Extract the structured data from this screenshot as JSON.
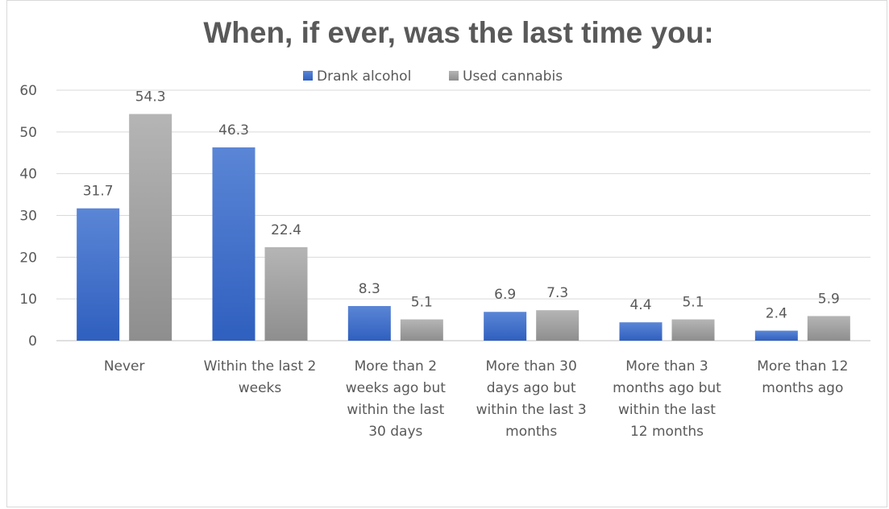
{
  "chart_data": {
    "type": "bar",
    "title": "When, if ever, was the last time you:",
    "categories": [
      [
        "Never"
      ],
      [
        "Within the last 2",
        "weeks"
      ],
      [
        "More than 2",
        "weeks ago but",
        "within the last",
        "30 days"
      ],
      [
        "More than 30",
        "days ago but",
        "within the last 3",
        "months"
      ],
      [
        "More than 3",
        "months ago but",
        "within the last",
        "12 months"
      ],
      [
        "More than 12",
        "months ago"
      ]
    ],
    "series": [
      {
        "name": "Drank alcohol",
        "color_top": "#5b86d6",
        "color_bottom": "#2f5fbf",
        "values": [
          31.7,
          46.3,
          8.3,
          6.9,
          4.4,
          2.4
        ],
        "labels": [
          "31.7",
          "46.3",
          "8.3",
          "6.9",
          "4.4",
          "2.4"
        ]
      },
      {
        "name": "Used cannabis",
        "color_top": "#b5b5b5",
        "color_bottom": "#8e8e8e",
        "values": [
          54.3,
          22.4,
          5.1,
          7.3,
          5.1,
          5.9
        ],
        "labels": [
          "54.3",
          "22.4",
          "5.1",
          "7.3",
          "5.1",
          "5.9"
        ]
      }
    ],
    "yticks": [
      "0",
      "10",
      "20",
      "30",
      "40",
      "50",
      "60"
    ],
    "ylim": [
      0,
      60
    ],
    "grid": true,
    "legend_position": "top"
  }
}
